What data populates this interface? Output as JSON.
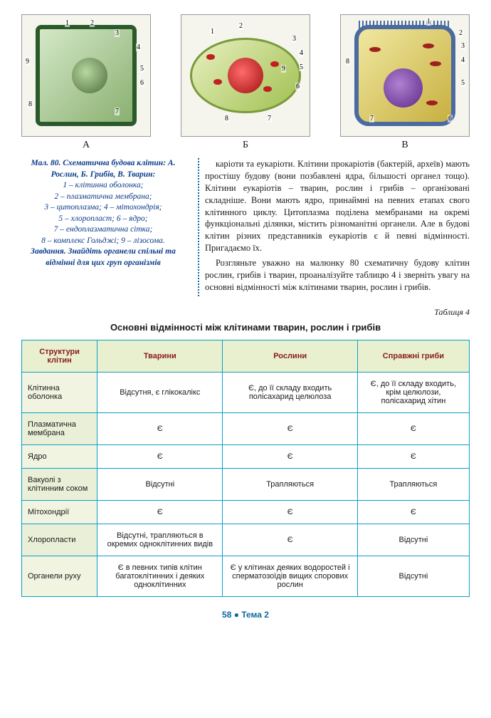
{
  "figures": {
    "labels": [
      "А",
      "Б",
      "В"
    ],
    "numbers_a": [
      "1",
      "2",
      "3",
      "4",
      "5",
      "6",
      "7",
      "8",
      "9"
    ],
    "numbers_b": [
      "1",
      "2",
      "3",
      "4",
      "5",
      "6",
      "7",
      "8",
      "9"
    ],
    "numbers_c": [
      "1",
      "2",
      "3",
      "4",
      "5",
      "6",
      "7",
      "8"
    ]
  },
  "legend": {
    "title": "Мал. 80. Схематична будова клітин: А. Рослин, Б. Грибів, В. Тварин:",
    "lines": [
      "1 – клітинна оболонка;",
      "2 – плазматична мембрана;",
      "3 – цитоплазма; 4 – мітохондрія;",
      "5 – хлоропласт; 6 – ядро;",
      "7 – ендоплазматична сітка;",
      "8 – комплекс Гольджі; 9 – лізосома."
    ],
    "task": "Завдання. Знайдіть органели спільні та відмінні для цих груп організмів"
  },
  "body": {
    "p1": "каріоти та еукаріоти. Клітини прокаріотів (бактерій, археїв) мають простішу будову (вони позбавлені ядра, більшості органел тощо). Клітини еукаріотів – тварин, рослин і грибів – організовані складніше. Вони мають ядро, принаймні на певних етапах свого клітинного циклу. Цитоплазма поділена мембранами на окремі функціональні ділянки, містить різноманітні органели. Але в будові клітин різних представників еукаріотів є й певні відмінності. Пригадаємо їх.",
    "p2": "Розгляньте уважно на малюнку 80 схематичну будову клітин рослин, грибів і тварин, проаналізуйте таблицю 4 і зверніть увагу на основні відмінності між клітинами тварин, рослин і грибів."
  },
  "table": {
    "label": "Таблиця 4",
    "title": "Основні відмінності між клітинами тварин, рослин і грибів",
    "headers": [
      "Структури клітин",
      "Тварини",
      "Рослини",
      "Справжні гриби"
    ],
    "rows": [
      [
        "Клітинна оболонка",
        "Відсутня, є глікокалікс",
        "Є, до її складу входить полісахарид целюлоза",
        "Є, до її складу входить, крім целюлози, полісахарид хітин"
      ],
      [
        "Плазматична мембрана",
        "Є",
        "Є",
        "Є"
      ],
      [
        "Ядро",
        "Є",
        "Є",
        "Є"
      ],
      [
        "Вакуолі з клітинним соком",
        "Відсутні",
        "Трапляються",
        "Трапляються"
      ],
      [
        "Мітохондрії",
        "Є",
        "Є",
        "Є"
      ],
      [
        "Хлоропласти",
        "Відсутні, трапляються в окремих одноклітинних видів",
        "Є",
        "Відсутні"
      ],
      [
        "Органели руху",
        "Є в певних типів клітин багатоклітинних і деяких одноклітинних",
        "Є у клітинах деяких водоростей і сперматозоїдів вищих спорових рослин",
        "Відсутні"
      ]
    ]
  },
  "footer": {
    "page": "58",
    "bullet": "●",
    "theme": "Тема 2"
  }
}
